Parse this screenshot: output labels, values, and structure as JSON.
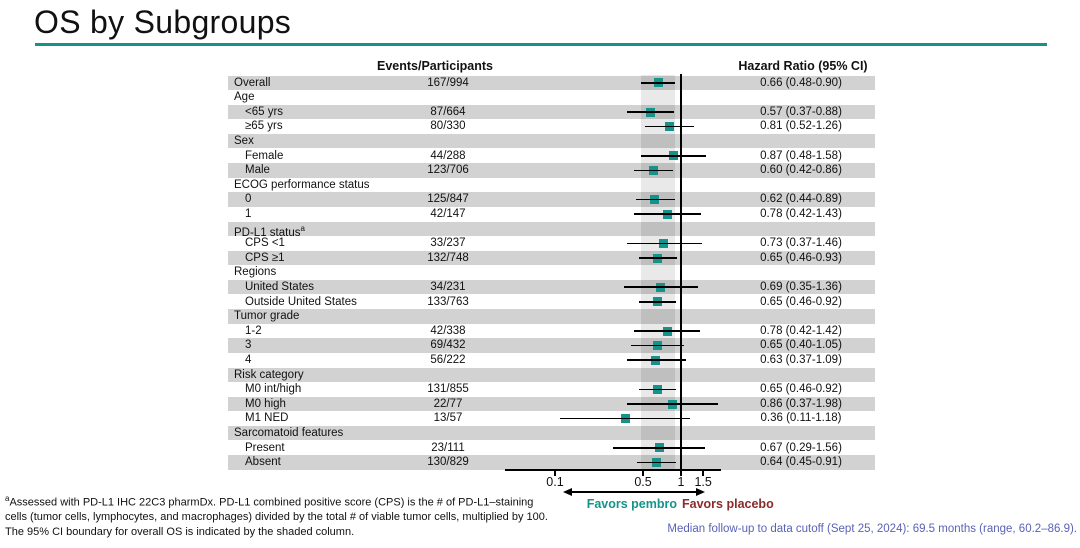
{
  "title": "OS by Subgroups",
  "columns": {
    "events": "Events/Participants",
    "hr": "Hazard Ratio (95% CI)"
  },
  "chart_data": {
    "type": "scatter",
    "variant": "forest-plot",
    "xscale": "log10",
    "xlim": [
      0.04,
      2.1
    ],
    "xticks": [
      0.1,
      0.5,
      1,
      1.5
    ],
    "xtick_labels": [
      "0.1",
      "0.5",
      "1",
      "1.5"
    ],
    "reference_line_x": 1,
    "shaded_band": [
      0.48,
      0.9
    ],
    "shaded_band_meaning": "95% CI boundary for overall OS",
    "rows": [
      {
        "label": "Overall",
        "indent": 0,
        "events": "167/994",
        "hr": 0.66,
        "ci_low": 0.48,
        "ci_high": 0.9,
        "hr_text": "0.66 (0.48-0.90)"
      },
      {
        "label": "Age",
        "group_header": true
      },
      {
        "label": "<65 yrs",
        "indent": 1,
        "events": "87/664",
        "hr": 0.57,
        "ci_low": 0.37,
        "ci_high": 0.88,
        "hr_text": "0.57 (0.37-0.88)"
      },
      {
        "label": "≥65 yrs",
        "indent": 1,
        "events": "80/330",
        "hr": 0.81,
        "ci_low": 0.52,
        "ci_high": 1.26,
        "hr_text": "0.81 (0.52-1.26)"
      },
      {
        "label": "Sex",
        "group_header": true
      },
      {
        "label": "Female",
        "indent": 1,
        "events": "44/288",
        "hr": 0.87,
        "ci_low": 0.48,
        "ci_high": 1.58,
        "hr_text": "0.87 (0.48-1.58)"
      },
      {
        "label": "Male",
        "indent": 1,
        "events": "123/706",
        "hr": 0.6,
        "ci_low": 0.42,
        "ci_high": 0.86,
        "hr_text": "0.60 (0.42-0.86)"
      },
      {
        "label": "ECOG performance status",
        "group_header": true
      },
      {
        "label": "0",
        "indent": 1,
        "events": "125/847",
        "hr": 0.62,
        "ci_low": 0.44,
        "ci_high": 0.89,
        "hr_text": "0.62 (0.44-0.89)"
      },
      {
        "label": "1",
        "indent": 1,
        "events": "42/147",
        "hr": 0.78,
        "ci_low": 0.42,
        "ci_high": 1.43,
        "hr_text": "0.78 (0.42-1.43)"
      },
      {
        "label": "PD-L1 status",
        "sup": "a",
        "group_header": true
      },
      {
        "label": "CPS <1",
        "indent": 1,
        "events": "33/237",
        "hr": 0.73,
        "ci_low": 0.37,
        "ci_high": 1.46,
        "hr_text": "0.73 (0.37-1.46)"
      },
      {
        "label": "CPS ≥1",
        "indent": 1,
        "events": "132/748",
        "hr": 0.65,
        "ci_low": 0.46,
        "ci_high": 0.93,
        "hr_text": "0.65 (0.46-0.93)"
      },
      {
        "label": "Regions",
        "group_header": true
      },
      {
        "label": "United States",
        "indent": 1,
        "events": "34/231",
        "hr": 0.69,
        "ci_low": 0.35,
        "ci_high": 1.36,
        "hr_text": "0.69 (0.35-1.36)"
      },
      {
        "label": "Outside United States",
        "indent": 1,
        "events": "133/763",
        "hr": 0.65,
        "ci_low": 0.46,
        "ci_high": 0.92,
        "hr_text": "0.65 (0.46-0.92)"
      },
      {
        "label": "Tumor grade",
        "group_header": true
      },
      {
        "label": "1-2",
        "indent": 1,
        "events": "42/338",
        "hr": 0.78,
        "ci_low": 0.42,
        "ci_high": 1.42,
        "hr_text": "0.78 (0.42-1.42)"
      },
      {
        "label": "3",
        "indent": 1,
        "events": "69/432",
        "hr": 0.65,
        "ci_low": 0.4,
        "ci_high": 1.05,
        "hr_text": "0.65 (0.40-1.05)"
      },
      {
        "label": "4",
        "indent": 1,
        "events": "56/222",
        "hr": 0.63,
        "ci_low": 0.37,
        "ci_high": 1.09,
        "hr_text": "0.63 (0.37-1.09)"
      },
      {
        "label": "Risk category",
        "group_header": true
      },
      {
        "label": "M0 int/high",
        "indent": 1,
        "events": "131/855",
        "hr": 0.65,
        "ci_low": 0.46,
        "ci_high": 0.92,
        "hr_text": "0.65 (0.46-0.92)"
      },
      {
        "label": "M0 high",
        "indent": 1,
        "events": "22/77",
        "hr": 0.86,
        "ci_low": 0.37,
        "ci_high": 1.98,
        "hr_text": "0.86 (0.37-1.98)"
      },
      {
        "label": "M1 NED",
        "indent": 1,
        "events": "13/57",
        "hr": 0.36,
        "ci_low": 0.11,
        "ci_high": 1.18,
        "hr_text": "0.36 (0.11-1.18)"
      },
      {
        "label": "Sarcomatoid features",
        "group_header": true
      },
      {
        "label": "Present",
        "indent": 1,
        "events": "23/111",
        "hr": 0.67,
        "ci_low": 0.29,
        "ci_high": 1.56,
        "hr_text": "0.67 (0.29-1.56)"
      },
      {
        "label": "Absent",
        "indent": 1,
        "events": "130/829",
        "hr": 0.64,
        "ci_low": 0.45,
        "ci_high": 0.91,
        "hr_text": "0.64 (0.45-0.91)"
      }
    ]
  },
  "favors": {
    "left": "Favors pembro",
    "right": "Favors placebo"
  },
  "footnotes": {
    "sup": "a",
    "line1": "Assessed with PD-L1 IHC 22C3 pharmDx. PD-L1 combined positive score (CPS) is the # of PD-L1–staining",
    "line2": "cells (tumor cells, lymphocytes, and macrophages) divided by the total # of viable tumor cells, multiplied by 100.",
    "line3": "The 95% CI boundary for overall OS is indicated by the shaded column."
  },
  "median_note": "Median follow-up to data cutoff (Sept 25, 2024): 69.5 months (range, 60.2–86.9).",
  "colors": {
    "accent_teal": "#15938b",
    "placebo_maroon": "#8b2a2a",
    "note_blue": "#5a62b8",
    "stripe_gray": "#d2d2d2"
  }
}
